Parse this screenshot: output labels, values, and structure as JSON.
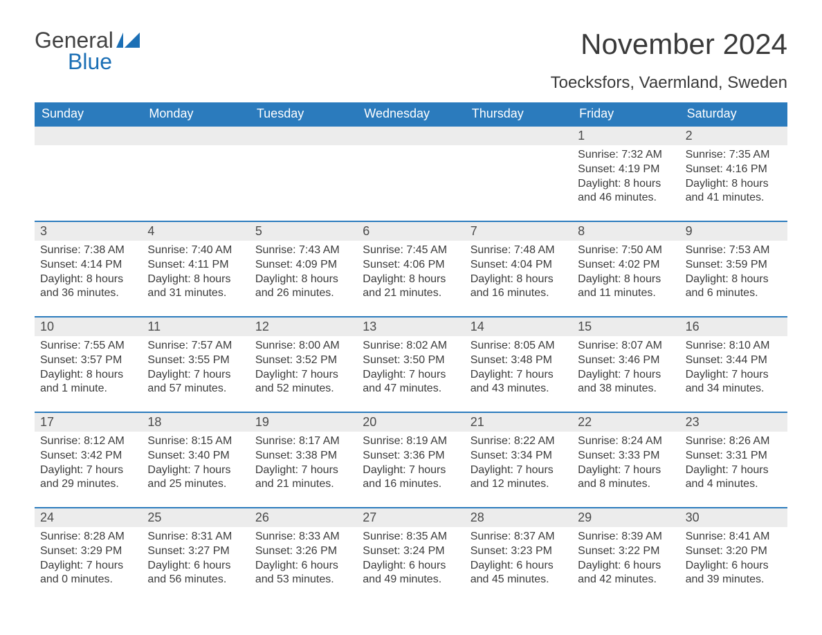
{
  "brand": {
    "general": "General",
    "blue": "Blue",
    "logo_color": "#1b6fb5"
  },
  "title": "November 2024",
  "location": "Toecksfors, Vaermland, Sweden",
  "colors": {
    "header_bg": "#2b7bbd",
    "header_text": "#ffffff",
    "strip_bg": "#ececec",
    "strip_border": "#2b7bbd",
    "body_text": "#3a3a3a",
    "page_bg": "#ffffff"
  },
  "typography": {
    "title_fontsize": 42,
    "location_fontsize": 24,
    "dow_fontsize": 18,
    "daynum_fontsize": 18,
    "body_fontsize": 16
  },
  "layout": {
    "columns": 7,
    "rows": 5,
    "leading_blanks": 5
  },
  "dow": [
    "Sunday",
    "Monday",
    "Tuesday",
    "Wednesday",
    "Thursday",
    "Friday",
    "Saturday"
  ],
  "days": [
    {
      "n": "1",
      "sunrise": "Sunrise: 7:32 AM",
      "sunset": "Sunset: 4:19 PM",
      "dl1": "Daylight: 8 hours",
      "dl2": "and 46 minutes."
    },
    {
      "n": "2",
      "sunrise": "Sunrise: 7:35 AM",
      "sunset": "Sunset: 4:16 PM",
      "dl1": "Daylight: 8 hours",
      "dl2": "and 41 minutes."
    },
    {
      "n": "3",
      "sunrise": "Sunrise: 7:38 AM",
      "sunset": "Sunset: 4:14 PM",
      "dl1": "Daylight: 8 hours",
      "dl2": "and 36 minutes."
    },
    {
      "n": "4",
      "sunrise": "Sunrise: 7:40 AM",
      "sunset": "Sunset: 4:11 PM",
      "dl1": "Daylight: 8 hours",
      "dl2": "and 31 minutes."
    },
    {
      "n": "5",
      "sunrise": "Sunrise: 7:43 AM",
      "sunset": "Sunset: 4:09 PM",
      "dl1": "Daylight: 8 hours",
      "dl2": "and 26 minutes."
    },
    {
      "n": "6",
      "sunrise": "Sunrise: 7:45 AM",
      "sunset": "Sunset: 4:06 PM",
      "dl1": "Daylight: 8 hours",
      "dl2": "and 21 minutes."
    },
    {
      "n": "7",
      "sunrise": "Sunrise: 7:48 AM",
      "sunset": "Sunset: 4:04 PM",
      "dl1": "Daylight: 8 hours",
      "dl2": "and 16 minutes."
    },
    {
      "n": "8",
      "sunrise": "Sunrise: 7:50 AM",
      "sunset": "Sunset: 4:02 PM",
      "dl1": "Daylight: 8 hours",
      "dl2": "and 11 minutes."
    },
    {
      "n": "9",
      "sunrise": "Sunrise: 7:53 AM",
      "sunset": "Sunset: 3:59 PM",
      "dl1": "Daylight: 8 hours",
      "dl2": "and 6 minutes."
    },
    {
      "n": "10",
      "sunrise": "Sunrise: 7:55 AM",
      "sunset": "Sunset: 3:57 PM",
      "dl1": "Daylight: 8 hours",
      "dl2": "and 1 minute."
    },
    {
      "n": "11",
      "sunrise": "Sunrise: 7:57 AM",
      "sunset": "Sunset: 3:55 PM",
      "dl1": "Daylight: 7 hours",
      "dl2": "and 57 minutes."
    },
    {
      "n": "12",
      "sunrise": "Sunrise: 8:00 AM",
      "sunset": "Sunset: 3:52 PM",
      "dl1": "Daylight: 7 hours",
      "dl2": "and 52 minutes."
    },
    {
      "n": "13",
      "sunrise": "Sunrise: 8:02 AM",
      "sunset": "Sunset: 3:50 PM",
      "dl1": "Daylight: 7 hours",
      "dl2": "and 47 minutes."
    },
    {
      "n": "14",
      "sunrise": "Sunrise: 8:05 AM",
      "sunset": "Sunset: 3:48 PM",
      "dl1": "Daylight: 7 hours",
      "dl2": "and 43 minutes."
    },
    {
      "n": "15",
      "sunrise": "Sunrise: 8:07 AM",
      "sunset": "Sunset: 3:46 PM",
      "dl1": "Daylight: 7 hours",
      "dl2": "and 38 minutes."
    },
    {
      "n": "16",
      "sunrise": "Sunrise: 8:10 AM",
      "sunset": "Sunset: 3:44 PM",
      "dl1": "Daylight: 7 hours",
      "dl2": "and 34 minutes."
    },
    {
      "n": "17",
      "sunrise": "Sunrise: 8:12 AM",
      "sunset": "Sunset: 3:42 PM",
      "dl1": "Daylight: 7 hours",
      "dl2": "and 29 minutes."
    },
    {
      "n": "18",
      "sunrise": "Sunrise: 8:15 AM",
      "sunset": "Sunset: 3:40 PM",
      "dl1": "Daylight: 7 hours",
      "dl2": "and 25 minutes."
    },
    {
      "n": "19",
      "sunrise": "Sunrise: 8:17 AM",
      "sunset": "Sunset: 3:38 PM",
      "dl1": "Daylight: 7 hours",
      "dl2": "and 21 minutes."
    },
    {
      "n": "20",
      "sunrise": "Sunrise: 8:19 AM",
      "sunset": "Sunset: 3:36 PM",
      "dl1": "Daylight: 7 hours",
      "dl2": "and 16 minutes."
    },
    {
      "n": "21",
      "sunrise": "Sunrise: 8:22 AM",
      "sunset": "Sunset: 3:34 PM",
      "dl1": "Daylight: 7 hours",
      "dl2": "and 12 minutes."
    },
    {
      "n": "22",
      "sunrise": "Sunrise: 8:24 AM",
      "sunset": "Sunset: 3:33 PM",
      "dl1": "Daylight: 7 hours",
      "dl2": "and 8 minutes."
    },
    {
      "n": "23",
      "sunrise": "Sunrise: 8:26 AM",
      "sunset": "Sunset: 3:31 PM",
      "dl1": "Daylight: 7 hours",
      "dl2": "and 4 minutes."
    },
    {
      "n": "24",
      "sunrise": "Sunrise: 8:28 AM",
      "sunset": "Sunset: 3:29 PM",
      "dl1": "Daylight: 7 hours",
      "dl2": "and 0 minutes."
    },
    {
      "n": "25",
      "sunrise": "Sunrise: 8:31 AM",
      "sunset": "Sunset: 3:27 PM",
      "dl1": "Daylight: 6 hours",
      "dl2": "and 56 minutes."
    },
    {
      "n": "26",
      "sunrise": "Sunrise: 8:33 AM",
      "sunset": "Sunset: 3:26 PM",
      "dl1": "Daylight: 6 hours",
      "dl2": "and 53 minutes."
    },
    {
      "n": "27",
      "sunrise": "Sunrise: 8:35 AM",
      "sunset": "Sunset: 3:24 PM",
      "dl1": "Daylight: 6 hours",
      "dl2": "and 49 minutes."
    },
    {
      "n": "28",
      "sunrise": "Sunrise: 8:37 AM",
      "sunset": "Sunset: 3:23 PM",
      "dl1": "Daylight: 6 hours",
      "dl2": "and 45 minutes."
    },
    {
      "n": "29",
      "sunrise": "Sunrise: 8:39 AM",
      "sunset": "Sunset: 3:22 PM",
      "dl1": "Daylight: 6 hours",
      "dl2": "and 42 minutes."
    },
    {
      "n": "30",
      "sunrise": "Sunrise: 8:41 AM",
      "sunset": "Sunset: 3:20 PM",
      "dl1": "Daylight: 6 hours",
      "dl2": "and 39 minutes."
    }
  ]
}
